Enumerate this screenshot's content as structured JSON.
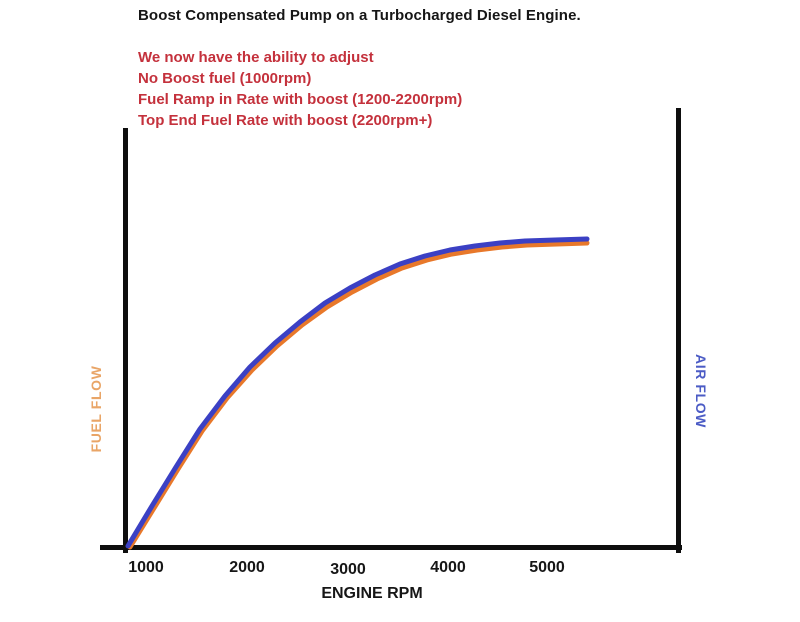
{
  "title": "Boost Compensated Pump on a Turbocharged Diesel Engine.",
  "annotations": {
    "lines": [
      "We now have the ability to adjust",
      "No Boost fuel (1000rpm)",
      "Fuel Ramp in Rate with boost (1200-2200rpm)",
      "Top End Fuel Rate with boost (2200rpm+)"
    ]
  },
  "colors": {
    "annotation_red": "#c4313c",
    "fuel_curve": "#e8782a",
    "air_curve": "#3b40c4",
    "fuel_label": "#e9a567",
    "air_label": "#4b5bc5",
    "axis_black": "#0e0e0e"
  },
  "chart_data": {
    "type": "line",
    "title": "Boost Compensated Pump on a Turbocharged Diesel Engine.",
    "xlabel": "ENGINE RPM",
    "x_ticks": [
      "1000",
      "2000",
      "3000",
      "4000",
      "5000"
    ],
    "xlim": [
      900,
      5800
    ],
    "left_axis_label": "FUEL FLOW",
    "right_axis_label": "AIR FLOW",
    "grid": false,
    "legend": "none (axis labels act as series labels)",
    "x_rpm_samples": [
      1000,
      1500,
      2000,
      2500,
      3000,
      3500,
      4000,
      4500,
      5000,
      5400
    ],
    "series": [
      {
        "name": "AIR FLOW",
        "color": "#3b40c4",
        "relative_flow_pct": [
          0,
          26,
          50,
          67,
          80,
          89,
          95,
          98,
          99,
          100
        ],
        "px": [
          [
            128,
            546
          ],
          [
            152,
            506
          ],
          [
            176,
            467
          ],
          [
            200,
            429
          ],
          [
            225,
            396
          ],
          [
            250,
            367
          ],
          [
            275,
            343
          ],
          [
            300,
            322
          ],
          [
            325,
            303
          ],
          [
            350,
            288
          ],
          [
            375,
            275
          ],
          [
            400,
            264
          ],
          [
            425,
            256
          ],
          [
            450,
            250
          ],
          [
            475,
            246
          ],
          [
            500,
            243
          ],
          [
            525,
            241
          ],
          [
            555,
            240
          ],
          [
            587,
            239
          ]
        ]
      },
      {
        "name": "FUEL FLOW",
        "color": "#e8782a",
        "relative_flow_pct": [
          0,
          25,
          49,
          66,
          78,
          87,
          93,
          96,
          98,
          99
        ],
        "px": [
          [
            130,
            547
          ],
          [
            154,
            508
          ],
          [
            178,
            469
          ],
          [
            202,
            431
          ],
          [
            227,
            398
          ],
          [
            252,
            370
          ],
          [
            277,
            346
          ],
          [
            302,
            325
          ],
          [
            327,
            307
          ],
          [
            352,
            292
          ],
          [
            377,
            279
          ],
          [
            402,
            268
          ],
          [
            427,
            260
          ],
          [
            452,
            254
          ],
          [
            477,
            250
          ],
          [
            502,
            247
          ],
          [
            527,
            245
          ],
          [
            557,
            244
          ],
          [
            587,
            243
          ]
        ]
      }
    ]
  }
}
